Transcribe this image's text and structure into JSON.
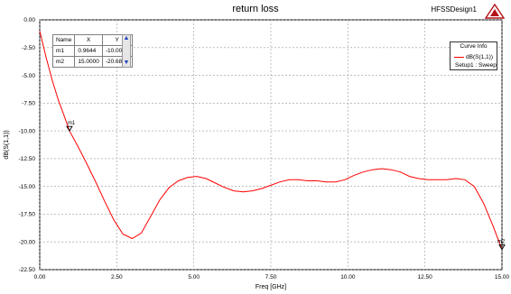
{
  "window": {
    "design_name": "HFSSDesign1"
  },
  "chart_data": {
    "type": "line",
    "title": "return loss",
    "xlabel": "Freq [GHz]",
    "ylabel": "dB(S(1,1))",
    "xlim": [
      0,
      15
    ],
    "ylim": [
      -22.5,
      0
    ],
    "xticks": [
      "0.00",
      "2.50",
      "5.00",
      "7.50",
      "10.00",
      "12.50",
      "15.00"
    ],
    "yticks": [
      "0.00",
      "-2.50",
      "-5.00",
      "-7.50",
      "-10.00",
      "-12.50",
      "-15.00",
      "-17.50",
      "-20.00",
      "-22.50"
    ],
    "grid": true,
    "series": [
      {
        "name": "dB(S(1,1))",
        "color": "#ff0000",
        "x": [
          0.0,
          0.2,
          0.4,
          0.6,
          0.8,
          0.9644,
          1.2,
          1.5,
          1.8,
          2.1,
          2.4,
          2.7,
          3.0,
          3.3,
          3.6,
          3.9,
          4.2,
          4.5,
          4.8,
          5.1,
          5.4,
          5.7,
          6.0,
          6.3,
          6.6,
          6.9,
          7.2,
          7.5,
          7.8,
          8.1,
          8.4,
          8.7,
          9.0,
          9.3,
          9.6,
          9.9,
          10.2,
          10.5,
          10.8,
          11.1,
          11.4,
          11.7,
          12.0,
          12.3,
          12.6,
          12.9,
          13.2,
          13.5,
          13.8,
          14.1,
          14.4,
          14.7,
          15.0
        ],
        "y": [
          -1.0,
          -3.3,
          -5.4,
          -7.2,
          -8.7,
          -10.0,
          -11.2,
          -12.8,
          -14.5,
          -16.3,
          -18.0,
          -19.3,
          -19.7,
          -19.2,
          -17.7,
          -16.2,
          -15.1,
          -14.5,
          -14.2,
          -14.1,
          -14.3,
          -14.7,
          -15.1,
          -15.4,
          -15.5,
          -15.4,
          -15.2,
          -14.9,
          -14.6,
          -14.4,
          -14.4,
          -14.5,
          -14.5,
          -14.6,
          -14.6,
          -14.4,
          -14.0,
          -13.7,
          -13.5,
          -13.4,
          -13.5,
          -13.7,
          -14.1,
          -14.3,
          -14.4,
          -14.4,
          -14.4,
          -14.3,
          -14.4,
          -15.0,
          -16.5,
          -18.5,
          -20.6831
        ]
      }
    ],
    "legend": {
      "title": "Curve Info",
      "entry": "dB(S(1,1))",
      "sub": "Setup1 : Sweep",
      "position": "top-right"
    },
    "markers": {
      "headers": [
        "Name",
        "X",
        "Y"
      ],
      "rows": [
        {
          "name": "m1",
          "x": "0.9644",
          "y": "-10.0024",
          "xv": 0.9644,
          "yv": -10.0024
        },
        {
          "name": "m2",
          "x": "15.0000",
          "y": "-20.6831",
          "xv": 15.0,
          "yv": -20.6831
        }
      ]
    }
  }
}
